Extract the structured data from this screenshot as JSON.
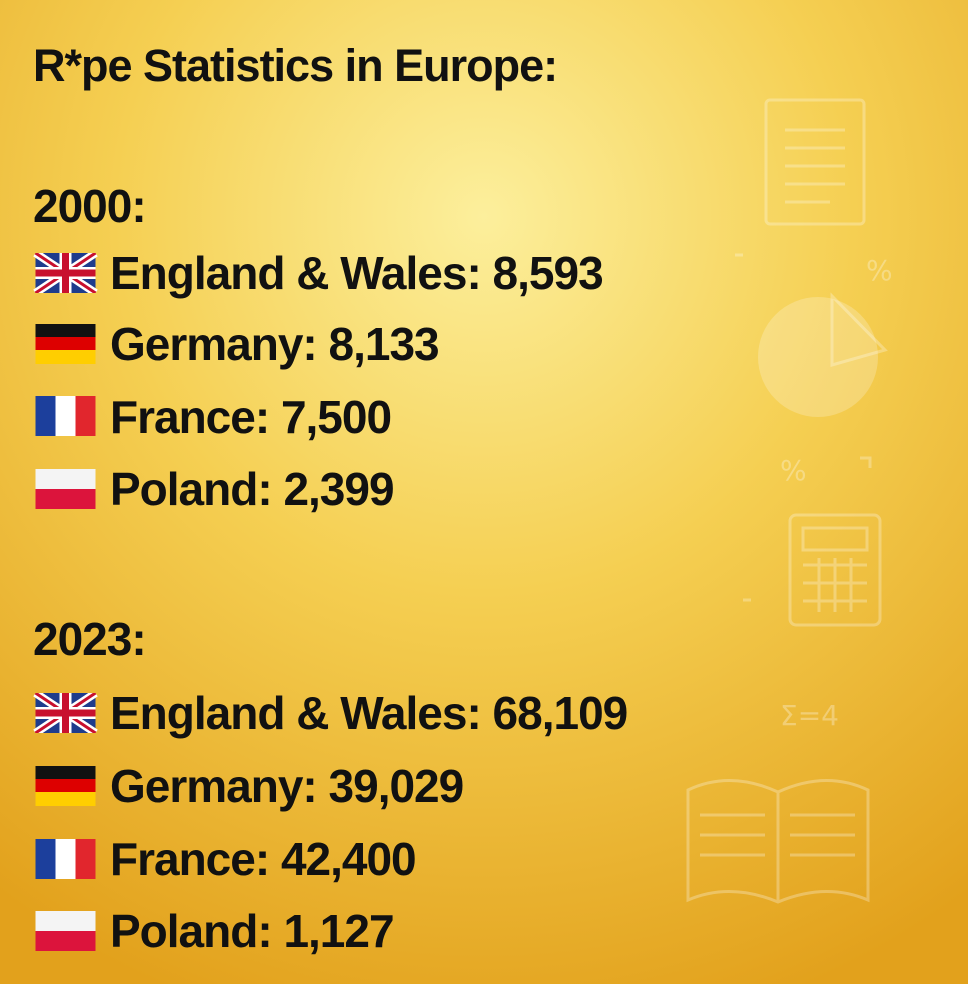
{
  "title": "R*pe Statistics in Europe:",
  "sections": [
    {
      "heading": "2000:",
      "items": [
        "England & Wales: 8,593",
        "Germany: 8,133",
        "France: 7,500",
        "Poland: 2,399"
      ]
    },
    {
      "heading": "2023:",
      "items": [
        "England & Wales: 68,109",
        "Germany: 39,029",
        "France: 42,400",
        "Poland: 1,127"
      ]
    }
  ],
  "background_symbols": [
    "%",
    "%",
    "Σ=4"
  ]
}
